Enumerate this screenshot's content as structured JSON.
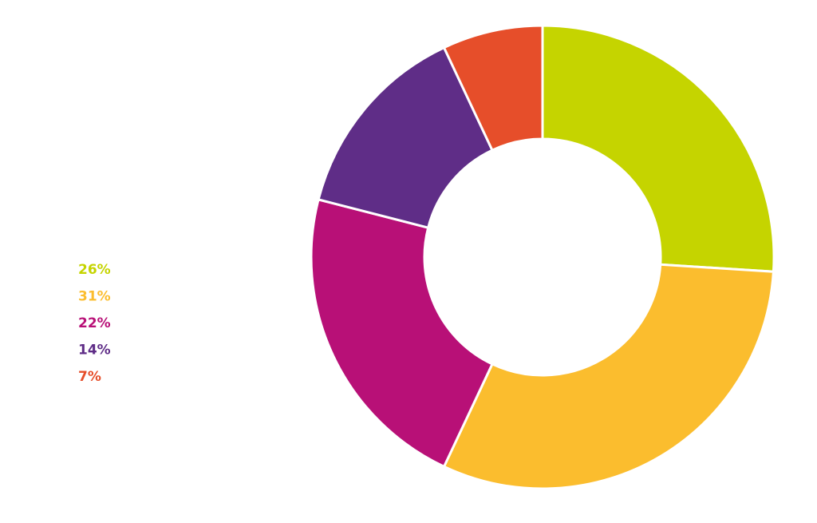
{
  "chart_data": {
    "type": "donut",
    "values": [
      26,
      31,
      22,
      14,
      7
    ],
    "value_labels": [
      "26%",
      "31%",
      "22%",
      "14%",
      "7%"
    ],
    "colors": [
      "#c5d400",
      "#fbbd2e",
      "#b81077",
      "#5f2d87",
      "#e64e2a"
    ]
  }
}
